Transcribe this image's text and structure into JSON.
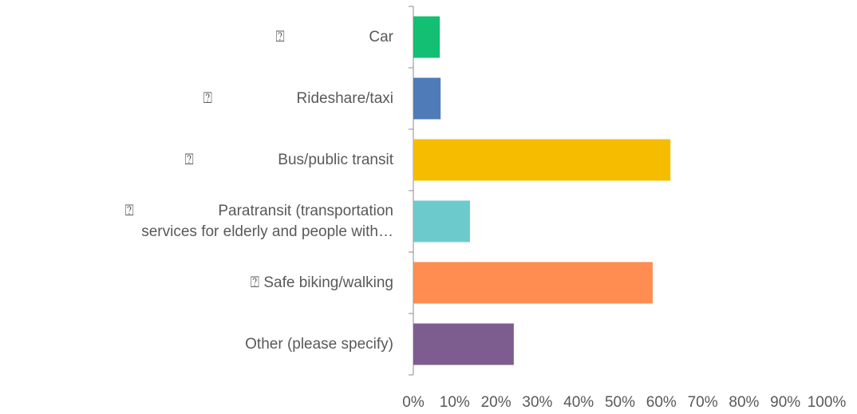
{
  "chart_data": {
    "type": "bar",
    "orientation": "horizontal",
    "categories": [
      "⍰                    Car",
      "⍰                    Rideshare/taxi",
      "⍰                    Bus/public transit",
      "⍰                    Paratransit (transportation services for elderly and people with…",
      "⍰ Safe biking/walking",
      "Other (please specify)"
    ],
    "values": [
      6.4,
      6.6,
      62.2,
      13.7,
      57.9,
      24.3
    ],
    "colors": [
      "#12bf73",
      "#4f7bb8",
      "#f6bd00",
      "#6ccacd",
      "#ff8c50",
      "#7d5d8f"
    ],
    "xlim": [
      0,
      100
    ],
    "xticks": [
      {
        "value": 0,
        "label": "0%"
      },
      {
        "value": 10,
        "label": "10%"
      },
      {
        "value": 20,
        "label": "20%"
      },
      {
        "value": 30,
        "label": "30%"
      },
      {
        "value": 40,
        "label": "40%"
      },
      {
        "value": 50,
        "label": "50%"
      },
      {
        "value": 60,
        "label": "60%"
      },
      {
        "value": 70,
        "label": "70%"
      },
      {
        "value": 80,
        "label": "80%"
      },
      {
        "value": 90,
        "label": "90%"
      },
      {
        "value": 100,
        "label": "100%"
      }
    ],
    "grid": false
  }
}
